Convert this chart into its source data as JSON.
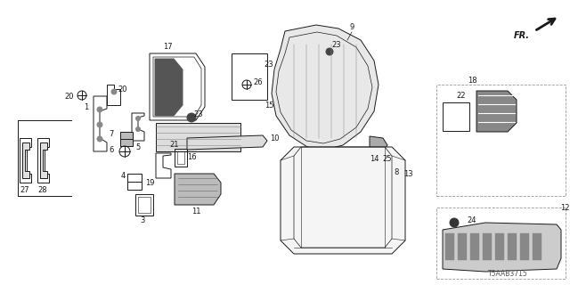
{
  "bg_color": "#ffffff",
  "line_color": "#1a1a1a",
  "diagram_id": "T5AAB3715",
  "figsize": [
    6.4,
    3.2
  ],
  "dpi": 100,
  "xlim": [
    0,
    640
  ],
  "ylim": [
    0,
    320
  ]
}
